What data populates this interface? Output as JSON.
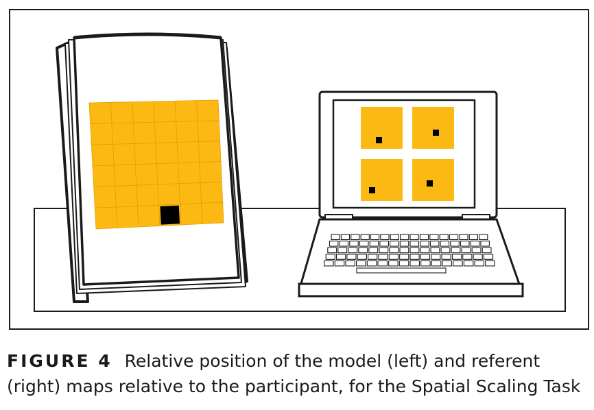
{
  "figure": {
    "label": "FIGURE 4",
    "caption": "Relative position of the model (left) and referent (right) maps relative to the participant, for the Spatial Scaling Task",
    "model_map": {
      "rows": 6,
      "cols": 6,
      "target_row": 5,
      "target_col": 3
    },
    "referent_maps": {
      "count": 4
    },
    "colors": {
      "grid_fill": "#FDB913",
      "target": "#000000",
      "outline": "#1a1a1a"
    }
  }
}
